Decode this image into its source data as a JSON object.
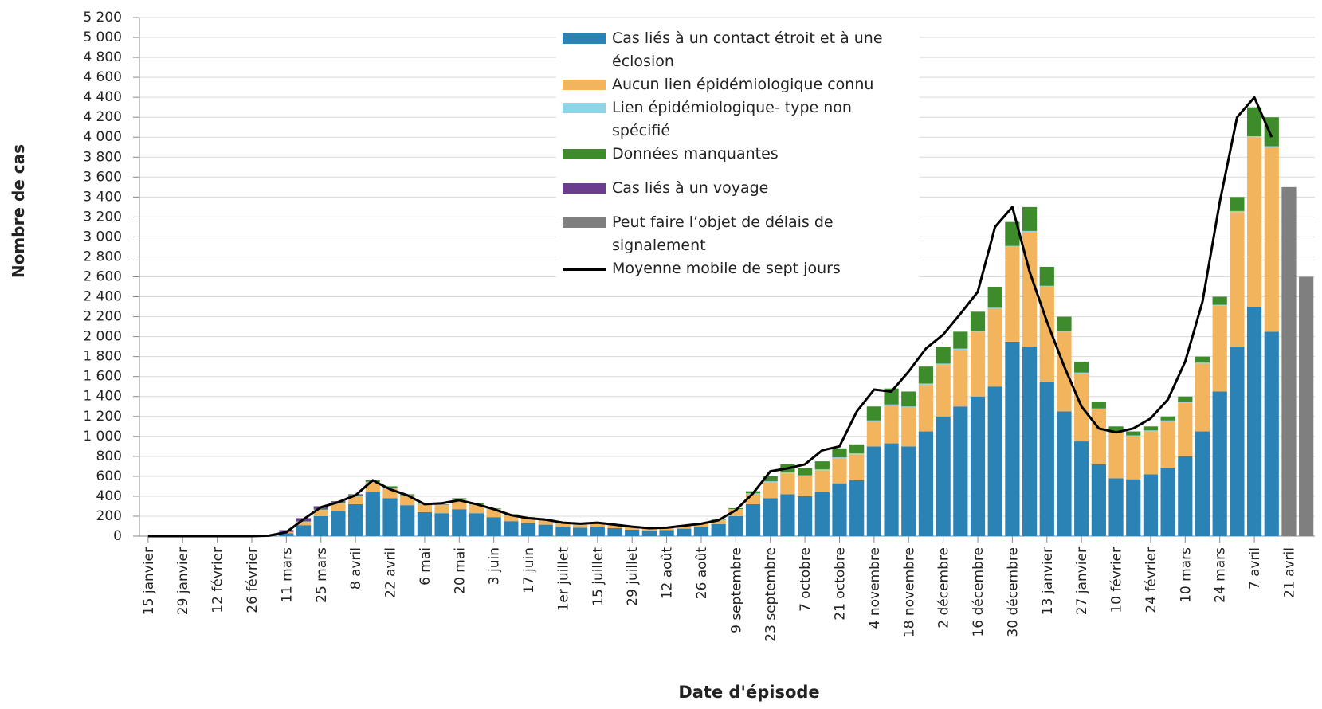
{
  "chart_data": {
    "type": "bar",
    "stacked": true,
    "x_label": "Date d'épisode",
    "y_label": "Nombre de cas",
    "categories": [
      "15 janvier",
      null,
      "29 janvier",
      null,
      "12 février",
      null,
      "26 février",
      null,
      "11 mars",
      null,
      "25 mars",
      null,
      "8 avril",
      null,
      "22 avril",
      null,
      "6 mai",
      null,
      "20 mai",
      null,
      "3 juin",
      null,
      "17 juin",
      null,
      "1er juillet",
      null,
      "15 juillet",
      null,
      "29 juillet",
      null,
      "12 août",
      null,
      "26 août",
      null,
      "9 septembre",
      null,
      "23 septembre",
      null,
      "7 octobre",
      null,
      "21 octobre",
      null,
      "4 novembre",
      null,
      "18 novembre",
      null,
      "2 décembre",
      null,
      "16 décembre",
      null,
      "30 décembre",
      null,
      "13 janvier",
      null,
      "27 janvier",
      null,
      "10 février",
      null,
      "24 février",
      null,
      "10 mars",
      null,
      "24 mars",
      null,
      "7 avril",
      null,
      "21 avril",
      null
    ],
    "series": [
      {
        "name": "Cas liés à un contact étroit et à une éclosion",
        "color": "#2b82b5",
        "values": [
          0,
          0,
          0,
          0,
          0,
          0,
          0,
          5,
          30,
          110,
          200,
          250,
          320,
          440,
          380,
          310,
          240,
          230,
          270,
          230,
          190,
          150,
          130,
          115,
          95,
          85,
          95,
          80,
          65,
          55,
          60,
          75,
          90,
          120,
          200,
          320,
          380,
          420,
          400,
          440,
          530,
          560,
          900,
          930,
          900,
          1050,
          1200,
          1300,
          1400,
          1500,
          1950,
          1900,
          1550,
          1250,
          950,
          720,
          580,
          570,
          620,
          680,
          800,
          1050,
          1450,
          1900,
          2300,
          2050,
          0,
          0
        ]
      },
      {
        "name": "Aucun lien épidémiologique connu",
        "color": "#f2b45c",
        "values": [
          0,
          0,
          0,
          0,
          0,
          0,
          0,
          2,
          10,
          30,
          60,
          75,
          80,
          100,
          100,
          95,
          80,
          80,
          95,
          85,
          80,
          60,
          50,
          45,
          35,
          35,
          35,
          30,
          25,
          22,
          22,
          27,
          30,
          40,
          65,
          100,
          160,
          210,
          200,
          220,
          250,
          260,
          250,
          380,
          390,
          470,
          520,
          570,
          650,
          780,
          950,
          1150,
          950,
          800,
          680,
          550,
          460,
          430,
          430,
          470,
          540,
          680,
          860,
          1350,
          1700,
          1850,
          0,
          0
        ]
      },
      {
        "name": "Lien épidémiologique- type non spécifié",
        "color": "#8fd3e6",
        "values": [
          0,
          0,
          0,
          0,
          0,
          0,
          0,
          0,
          2,
          5,
          5,
          5,
          5,
          5,
          5,
          5,
          5,
          5,
          5,
          5,
          5,
          5,
          5,
          5,
          5,
          5,
          5,
          5,
          5,
          3,
          3,
          3,
          5,
          5,
          5,
          10,
          10,
          10,
          10,
          10,
          10,
          10,
          10,
          10,
          10,
          10,
          10,
          10,
          10,
          10,
          10,
          10,
          10,
          10,
          10,
          10,
          10,
          10,
          10,
          10,
          10,
          10,
          10,
          10,
          10,
          10,
          0,
          0
        ]
      },
      {
        "name": "Données manquantes",
        "color": "#3d8b2a",
        "values": [
          0,
          0,
          0,
          0,
          0,
          0,
          0,
          0,
          3,
          5,
          10,
          10,
          10,
          15,
          15,
          10,
          5,
          5,
          10,
          10,
          5,
          5,
          5,
          5,
          5,
          5,
          5,
          5,
          5,
          5,
          5,
          5,
          5,
          5,
          10,
          20,
          50,
          80,
          70,
          80,
          90,
          90,
          140,
          160,
          150,
          170,
          170,
          170,
          190,
          210,
          240,
          240,
          190,
          140,
          110,
          70,
          50,
          40,
          40,
          40,
          50,
          60,
          80,
          140,
          290,
          290,
          0,
          0
        ]
      },
      {
        "name": "Cas liés à un voyage",
        "color": "#6a3d8f",
        "values": [
          0,
          0,
          0,
          0,
          0,
          0,
          0,
          3,
          15,
          30,
          25,
          10,
          5,
          0,
          0,
          0,
          0,
          0,
          0,
          0,
          0,
          0,
          0,
          0,
          0,
          0,
          0,
          0,
          0,
          0,
          0,
          0,
          0,
          0,
          0,
          0,
          0,
          0,
          0,
          0,
          0,
          0,
          0,
          0,
          0,
          0,
          0,
          0,
          0,
          0,
          0,
          0,
          0,
          0,
          0,
          0,
          0,
          0,
          0,
          0,
          0,
          0,
          0,
          0,
          0,
          0,
          0,
          0
        ]
      },
      {
        "name": "Peut faire l’objet de délais de signalement",
        "color": "#7f7f7f",
        "values": [
          0,
          0,
          0,
          0,
          0,
          0,
          0,
          0,
          0,
          0,
          0,
          0,
          0,
          0,
          0,
          0,
          0,
          0,
          0,
          0,
          0,
          0,
          0,
          0,
          0,
          0,
          0,
          0,
          0,
          0,
          0,
          0,
          0,
          0,
          0,
          0,
          0,
          0,
          0,
          0,
          0,
          0,
          0,
          0,
          0,
          0,
          0,
          0,
          0,
          0,
          0,
          0,
          0,
          0,
          0,
          0,
          0,
          0,
          0,
          0,
          0,
          0,
          0,
          0,
          0,
          0,
          3500,
          2600
        ]
      },
      {
        "name": "Moyenne mobile de sept jours",
        "type": "line",
        "color": "#000000",
        "values": [
          0,
          0,
          0,
          0,
          0,
          0,
          0,
          5,
          40,
          170,
          290,
          340,
          410,
          560,
          470,
          410,
          320,
          330,
          360,
          320,
          270,
          210,
          180,
          165,
          135,
          125,
          135,
          115,
          95,
          80,
          85,
          105,
          125,
          160,
          260,
          430,
          650,
          680,
          720,
          860,
          900,
          1250,
          1470,
          1450,
          1650,
          1880,
          2020,
          2230,
          2450,
          3100,
          3300,
          2650,
          2150,
          1700,
          1300,
          1080,
          1040,
          1080,
          1180,
          1370,
          1750,
          2350,
          3350,
          4200,
          4400,
          4000,
          null,
          null
        ]
      }
    ],
    "ylim": [
      0,
      5200
    ],
    "yticks": [
      0,
      200,
      400,
      600,
      800,
      {
        "value": 1000,
        "label": "1 000"
      },
      {
        "value": 1200,
        "label": "1 200"
      },
      {
        "value": 1400,
        "label": "1 400"
      },
      {
        "value": 1600,
        "label": "1 600"
      },
      {
        "value": 1800,
        "label": "1 800"
      },
      {
        "value": 2000,
        "label": "2 000"
      },
      {
        "value": 2200,
        "label": "2 200"
      },
      {
        "value": 2400,
        "label": "2 400"
      },
      {
        "value": 2600,
        "label": "2 600"
      },
      {
        "value": 2800,
        "label": "2 800"
      },
      {
        "value": 3000,
        "label": "3 000"
      },
      {
        "value": 3200,
        "label": "3 200"
      },
      {
        "value": 3400,
        "label": "3 400"
      },
      {
        "value": 3600,
        "label": "3 600"
      },
      {
        "value": 3800,
        "label": "3 800"
      },
      {
        "value": 4000,
        "label": "4 000"
      },
      {
        "value": 4200,
        "label": "4 200"
      },
      {
        "value": 4400,
        "label": "4 400"
      },
      {
        "value": 4600,
        "label": "4 600"
      },
      {
        "value": 4800,
        "label": "4 800"
      },
      {
        "value": 5000,
        "label": "5 000"
      },
      {
        "value": 5200,
        "label": "5 200"
      }
    ],
    "grid": true
  }
}
